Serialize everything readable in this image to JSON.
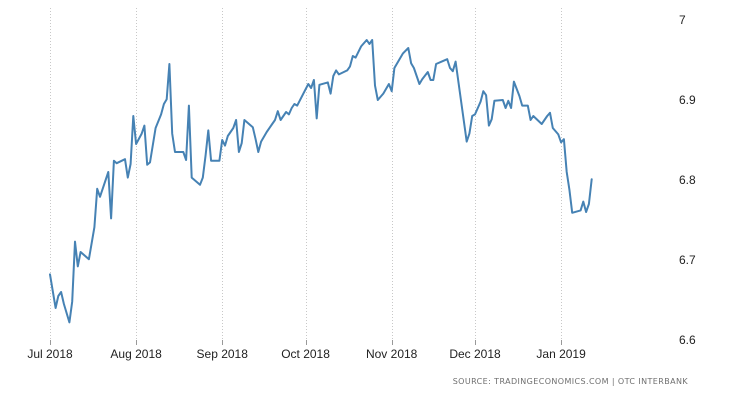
{
  "chart_data": {
    "type": "line",
    "title": "",
    "xlabel": "",
    "ylabel": "",
    "x_axis": {
      "start": "2018-07-01",
      "end": "2019-02-11",
      "ticks": [
        {
          "date": "2018-07-01",
          "label": "Jul 2018"
        },
        {
          "date": "2018-08-01",
          "label": "Aug 2018"
        },
        {
          "date": "2018-09-01",
          "label": "Sep 2018"
        },
        {
          "date": "2018-10-01",
          "label": "Oct 2018"
        },
        {
          "date": "2018-11-01",
          "label": "Nov 2018"
        },
        {
          "date": "2018-12-01",
          "label": "Dec 2018"
        },
        {
          "date": "2019-01-01",
          "label": "Jan 2019"
        }
      ]
    },
    "y_axis": {
      "ylim": [
        6.6,
        7.0
      ],
      "position": "right",
      "ticks": [
        {
          "value": 6.6,
          "label": "6.6"
        },
        {
          "value": 6.7,
          "label": "6.7"
        },
        {
          "value": 6.8,
          "label": "6.8"
        },
        {
          "value": 6.9,
          "label": "6.9"
        },
        {
          "value": 7.0,
          "label": "7"
        }
      ]
    },
    "grid": {
      "vertical": true,
      "horizontal": false,
      "style": "dotted"
    },
    "line_color": "#4682b4",
    "series": [
      {
        "points": [
          [
            "2018-07-01",
            6.682
          ],
          [
            "2018-07-03",
            6.64
          ],
          [
            "2018-07-04",
            6.655
          ],
          [
            "2018-07-05",
            6.66
          ],
          [
            "2018-07-06",
            6.645
          ],
          [
            "2018-07-08",
            6.622
          ],
          [
            "2018-07-09",
            6.648
          ],
          [
            "2018-07-10",
            6.723
          ],
          [
            "2018-07-11",
            6.692
          ],
          [
            "2018-07-12",
            6.71
          ],
          [
            "2018-07-15",
            6.701
          ],
          [
            "2018-07-17",
            6.741
          ],
          [
            "2018-07-18",
            6.789
          ],
          [
            "2018-07-19",
            6.779
          ],
          [
            "2018-07-22",
            6.81
          ],
          [
            "2018-07-23",
            6.752
          ],
          [
            "2018-07-24",
            6.824
          ],
          [
            "2018-07-25",
            6.821
          ],
          [
            "2018-07-28",
            6.826
          ],
          [
            "2018-07-29",
            6.803
          ],
          [
            "2018-07-30",
            6.82
          ],
          [
            "2018-07-31",
            6.88
          ],
          [
            "2018-08-01",
            6.845
          ],
          [
            "2018-08-03",
            6.858
          ],
          [
            "2018-08-04",
            6.868
          ],
          [
            "2018-08-05",
            6.819
          ],
          [
            "2018-08-06",
            6.822
          ],
          [
            "2018-08-08",
            6.865
          ],
          [
            "2018-08-10",
            6.882
          ],
          [
            "2018-08-11",
            6.895
          ],
          [
            "2018-08-12",
            6.901
          ],
          [
            "2018-08-13",
            6.945
          ],
          [
            "2018-08-14",
            6.858
          ],
          [
            "2018-08-15",
            6.835
          ],
          [
            "2018-08-18",
            6.835
          ],
          [
            "2018-08-19",
            6.825
          ],
          [
            "2018-08-20",
            6.893
          ],
          [
            "2018-08-21",
            6.803
          ],
          [
            "2018-08-24",
            6.794
          ],
          [
            "2018-08-25",
            6.803
          ],
          [
            "2018-08-26",
            6.831
          ],
          [
            "2018-08-27",
            6.862
          ],
          [
            "2018-08-28",
            6.824
          ],
          [
            "2018-08-31",
            6.824
          ],
          [
            "2018-09-01",
            6.85
          ],
          [
            "2018-09-02",
            6.843
          ],
          [
            "2018-09-03",
            6.855
          ],
          [
            "2018-09-05",
            6.865
          ],
          [
            "2018-09-06",
            6.875
          ],
          [
            "2018-09-07",
            6.835
          ],
          [
            "2018-09-08",
            6.846
          ],
          [
            "2018-09-09",
            6.875
          ],
          [
            "2018-09-12",
            6.866
          ],
          [
            "2018-09-13",
            6.851
          ],
          [
            "2018-09-14",
            6.835
          ],
          [
            "2018-09-15",
            6.848
          ],
          [
            "2018-09-17",
            6.86
          ],
          [
            "2018-09-19",
            6.87
          ],
          [
            "2018-09-20",
            6.875
          ],
          [
            "2018-09-21",
            6.886
          ],
          [
            "2018-09-22",
            6.875
          ],
          [
            "2018-09-24",
            6.885
          ],
          [
            "2018-09-25",
            6.882
          ],
          [
            "2018-09-26",
            6.89
          ],
          [
            "2018-09-27",
            6.895
          ],
          [
            "2018-09-28",
            6.893
          ],
          [
            "2018-10-02",
            6.92
          ],
          [
            "2018-10-03",
            6.915
          ],
          [
            "2018-10-04",
            6.925
          ],
          [
            "2018-10-05",
            6.877
          ],
          [
            "2018-10-06",
            6.919
          ],
          [
            "2018-10-09",
            6.922
          ],
          [
            "2018-10-10",
            6.908
          ],
          [
            "2018-10-11",
            6.93
          ],
          [
            "2018-10-12",
            6.937
          ],
          [
            "2018-10-13",
            6.932
          ],
          [
            "2018-10-16",
            6.937
          ],
          [
            "2018-10-17",
            6.942
          ],
          [
            "2018-10-18",
            6.955
          ],
          [
            "2018-10-19",
            6.953
          ],
          [
            "2018-10-21",
            6.967
          ],
          [
            "2018-10-23",
            6.975
          ],
          [
            "2018-10-24",
            6.97
          ],
          [
            "2018-10-25",
            6.975
          ],
          [
            "2018-10-26",
            6.918
          ],
          [
            "2018-10-27",
            6.9
          ],
          [
            "2018-10-29",
            6.908
          ],
          [
            "2018-10-31",
            6.92
          ],
          [
            "2018-11-01",
            6.911
          ],
          [
            "2018-11-02",
            6.94
          ],
          [
            "2018-11-05",
            6.958
          ],
          [
            "2018-11-07",
            6.965
          ],
          [
            "2018-11-08",
            6.946
          ],
          [
            "2018-11-09",
            6.94
          ],
          [
            "2018-11-11",
            6.92
          ],
          [
            "2018-11-12",
            6.926
          ],
          [
            "2018-11-14",
            6.935
          ],
          [
            "2018-11-15",
            6.925
          ],
          [
            "2018-11-16",
            6.925
          ],
          [
            "2018-11-17",
            6.945
          ],
          [
            "2018-11-19",
            6.948
          ],
          [
            "2018-11-21",
            6.951
          ],
          [
            "2018-11-22",
            6.94
          ],
          [
            "2018-11-23",
            6.936
          ],
          [
            "2018-11-24",
            6.948
          ],
          [
            "2018-11-28",
            6.848
          ],
          [
            "2018-11-29",
            6.858
          ],
          [
            "2018-11-30",
            6.88
          ],
          [
            "2018-12-01",
            6.882
          ],
          [
            "2018-12-03",
            6.898
          ],
          [
            "2018-12-04",
            6.911
          ],
          [
            "2018-12-05",
            6.906
          ],
          [
            "2018-12-06",
            6.868
          ],
          [
            "2018-12-07",
            6.876
          ],
          [
            "2018-12-08",
            6.899
          ],
          [
            "2018-12-11",
            6.9
          ],
          [
            "2018-12-12",
            6.89
          ],
          [
            "2018-12-13",
            6.899
          ],
          [
            "2018-12-14",
            6.89
          ],
          [
            "2018-12-15",
            6.923
          ],
          [
            "2018-12-17",
            6.905
          ],
          [
            "2018-12-18",
            6.893
          ],
          [
            "2018-12-20",
            6.893
          ],
          [
            "2018-12-21",
            6.875
          ],
          [
            "2018-12-22",
            6.88
          ],
          [
            "2018-12-25",
            6.87
          ],
          [
            "2018-12-27",
            6.88
          ],
          [
            "2018-12-28",
            6.884
          ],
          [
            "2018-12-29",
            6.865
          ],
          [
            "2018-12-31",
            6.857
          ],
          [
            "2019-01-01",
            6.847
          ],
          [
            "2019-01-02",
            6.851
          ],
          [
            "2019-01-03",
            6.81
          ],
          [
            "2019-01-04",
            6.788
          ],
          [
            "2019-01-05",
            6.759
          ],
          [
            "2019-01-08",
            6.762
          ],
          [
            "2019-01-09",
            6.773
          ],
          [
            "2019-01-10",
            6.76
          ],
          [
            "2019-01-11",
            6.77
          ],
          [
            "2019-01-12",
            6.801
          ]
        ]
      }
    ]
  },
  "footer": {
    "source": "SOURCE: TRADINGECONOMICS.COM | OTC INTERBANK"
  }
}
